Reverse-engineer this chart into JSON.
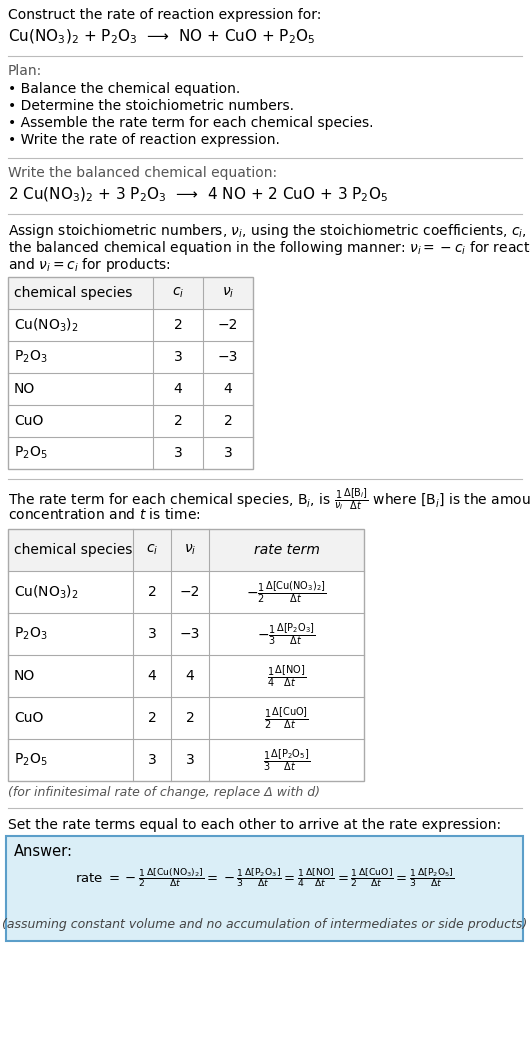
{
  "title_line1": "Construct the rate of reaction expression for:",
  "title_line2": "Cu(NO$_3$)$_2$ + P$_2$O$_3$  ⟶  NO + CuO + P$_2$O$_5$",
  "plan_header": "Plan:",
  "plan_items": [
    "• Balance the chemical equation.",
    "• Determine the stoichiometric numbers.",
    "• Assemble the rate term for each chemical species.",
    "• Write the rate of reaction expression."
  ],
  "balanced_header": "Write the balanced chemical equation:",
  "balanced_eq": "2 Cu(NO$_3$)$_2$ + 3 P$_2$O$_3$  ⟶  4 NO + 2 CuO + 3 P$_2$O$_5$",
  "stoich_intro_lines": [
    "Assign stoichiometric numbers, $\\nu_i$, using the stoichiometric coefficients, $c_i$, from",
    "the balanced chemical equation in the following manner: $\\nu_i = -c_i$ for reactants",
    "and $\\nu_i = c_i$ for products:"
  ],
  "table1_headers": [
    "chemical species",
    "$c_i$",
    "$\\nu_i$"
  ],
  "table1_rows": [
    [
      "Cu(NO$_3$)$_2$",
      "2",
      "−2"
    ],
    [
      "P$_2$O$_3$",
      "3",
      "−3"
    ],
    [
      "NO",
      "4",
      "4"
    ],
    [
      "CuO",
      "2",
      "2"
    ],
    [
      "P$_2$O$_5$",
      "3",
      "3"
    ]
  ],
  "rate_term_intro_lines": [
    "The rate term for each chemical species, B$_i$, is $\\frac{1}{\\nu_i}\\frac{\\Delta[\\mathrm{B}_i]}{\\Delta t}$ where [B$_i$] is the amount",
    "concentration and $t$ is time:"
  ],
  "table2_headers": [
    "chemical species",
    "$c_i$",
    "$\\nu_i$",
    "rate term"
  ],
  "table2_rows": [
    [
      "Cu(NO$_3$)$_2$",
      "2",
      "−2",
      "$-\\frac{1}{2}\\frac{\\Delta[\\mathrm{Cu(NO_3)_2}]}{\\Delta t}$"
    ],
    [
      "P$_2$O$_3$",
      "3",
      "−3",
      "$-\\frac{1}{3}\\frac{\\Delta[\\mathrm{P_2O_3}]}{\\Delta t}$"
    ],
    [
      "NO",
      "4",
      "4",
      "$\\frac{1}{4}\\frac{\\Delta[\\mathrm{NO}]}{\\Delta t}$"
    ],
    [
      "CuO",
      "2",
      "2",
      "$\\frac{1}{2}\\frac{\\Delta[\\mathrm{CuO}]}{\\Delta t}$"
    ],
    [
      "P$_2$O$_5$",
      "3",
      "3",
      "$\\frac{1}{3}\\frac{\\Delta[\\mathrm{P_2O_5}]}{\\Delta t}$"
    ]
  ],
  "infinitesimal_note": "(for infinitesimal rate of change, replace Δ with d)",
  "set_equal_text": "Set the rate terms equal to each other to arrive at the rate expression:",
  "answer_label": "Answer:",
  "assuming_note": "(assuming constant volume and no accumulation of intermediates or side products)",
  "bg_color": "#ffffff",
  "answer_bg": "#daeef7",
  "answer_border": "#5b9ec9",
  "text_color": "#000000",
  "table_border": "#aaaaaa",
  "header_bg": "#f2f2f2",
  "separator_color": "#bbbbbb",
  "body_fontsize": 10,
  "eq_fontsize": 11,
  "small_fontsize": 9
}
